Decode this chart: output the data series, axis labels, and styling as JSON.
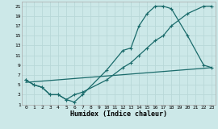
{
  "xlabel": "Humidex (Indice chaleur)",
  "bg_color": "#cce8e8",
  "grid_color": "#b8d8d8",
  "line_color": "#1a6b6b",
  "xlim": [
    -0.5,
    23.5
  ],
  "ylim": [
    1,
    22
  ],
  "xticks": [
    0,
    1,
    2,
    3,
    4,
    5,
    6,
    7,
    8,
    9,
    10,
    11,
    12,
    13,
    14,
    15,
    16,
    17,
    18,
    19,
    20,
    21,
    22,
    23
  ],
  "yticks": [
    1,
    3,
    5,
    7,
    9,
    11,
    13,
    15,
    17,
    19,
    21
  ],
  "line1_x": [
    0,
    1,
    2,
    3,
    4,
    5,
    6,
    7,
    10,
    12,
    13,
    14,
    15,
    16,
    17,
    18,
    20,
    22,
    23
  ],
  "line1_y": [
    6,
    5,
    4.5,
    3,
    3,
    2,
    1.5,
    3,
    8,
    12,
    12.5,
    17,
    19.5,
    21,
    21,
    20.5,
    15,
    9,
    8.5
  ],
  "line2_x": [
    0,
    1,
    2,
    3,
    4,
    5,
    6,
    7,
    10,
    12,
    13,
    14,
    15,
    16,
    17,
    18,
    20,
    22,
    23
  ],
  "line2_y": [
    6,
    5,
    4.5,
    3,
    3,
    2,
    3,
    3.5,
    6,
    8.5,
    9.5,
    11,
    12.5,
    14,
    15,
    17,
    19.5,
    21,
    21
  ],
  "line3_x": [
    0,
    23
  ],
  "line3_y": [
    5.5,
    8.5
  ],
  "marker": "+"
}
